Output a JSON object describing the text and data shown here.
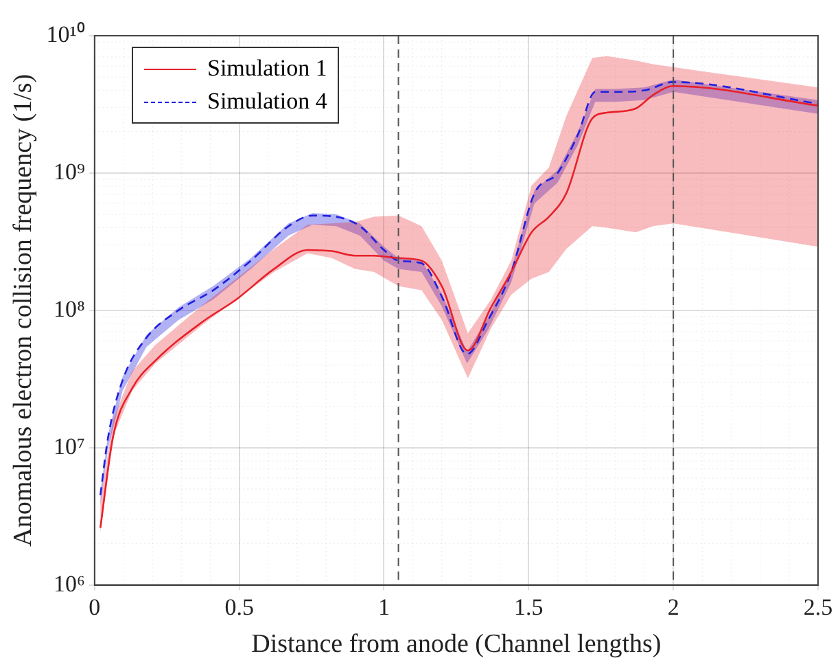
{
  "chart_data": {
    "type": "line",
    "xlabel": "Distance from anode (Channel lengths)",
    "ylabel": "Anomalous electron collision frequency (1/s)",
    "xlim": [
      0,
      2.5
    ],
    "xticks": [
      0,
      0.5,
      1,
      1.5,
      2,
      2.5
    ],
    "ylim": [
      1000000,
      10000000000
    ],
    "yticks": [
      {
        "value": 1000000,
        "label": "10⁶"
      },
      {
        "value": 10000000,
        "label": "10⁷"
      },
      {
        "value": 100000000,
        "label": "10⁸"
      },
      {
        "value": 1000000000,
        "label": "10⁹"
      },
      {
        "value": 10000000000,
        "label": "10¹⁰"
      }
    ],
    "log": true,
    "grid": true,
    "legend": "top left",
    "marker": "none",
    "series": [
      {
        "name": "Simulation 1",
        "color": "#e8202a",
        "line_style": "solid",
        "x": [
          0.02,
          0.064,
          0.13,
          0.21,
          0.375,
          0.49,
          0.62,
          0.736,
          0.82,
          0.9,
          0.966,
          1.05,
          1.13,
          1.2,
          1.29,
          1.37,
          1.44,
          1.51,
          1.57,
          1.63,
          1.72,
          1.77,
          1.87,
          1.93,
          2.0,
          2.5
        ],
        "values": [
          2600000.0,
          12000000.0,
          27000000.0,
          43000000.0,
          83000000.0,
          120000000.0,
          200000000.0,
          275000000.0,
          270000000.0,
          250000000.0,
          250000000.0,
          240000000.0,
          230000000.0,
          150000000.0,
          51000000.0,
          105000000.0,
          190000000.0,
          370000000.0,
          480000000.0,
          710000000.0,
          2500000000.0,
          2750000000.0,
          2950000000.0,
          3700000000.0,
          4300000000.0,
          3100000000.0
        ],
        "lower": [
          2400000.0,
          12000000.0,
          26000000.0,
          41000000.0,
          79000000.0,
          120000000.0,
          190000000.0,
          260000000.0,
          240000000.0,
          200000000.0,
          190000000.0,
          150000000.0,
          140000000.0,
          85000000.0,
          32000000.0,
          74000000.0,
          130000000.0,
          170000000.0,
          190000000.0,
          280000000.0,
          410000000.0,
          400000000.0,
          370000000.0,
          410000000.0,
          430000000.0,
          290000000.0
        ],
        "upper": [
          4000000.0,
          16000000.0,
          36000000.0,
          56000000.0,
          110000000.0,
          170000000.0,
          280000000.0,
          420000000.0,
          430000000.0,
          440000000.0,
          480000000.0,
          490000000.0,
          410000000.0,
          230000000.0,
          68000000.0,
          120000000.0,
          230000000.0,
          810000000.0,
          1100000000.0,
          2600000000.0,
          6900000000.0,
          7100000000.0,
          6600000000.0,
          6200000000.0,
          5900000000.0,
          4200000000.0
        ]
      },
      {
        "name": "Simulation 4",
        "color": "#2020e0",
        "line_style": "dashed",
        "x": [
          0.02,
          0.047,
          0.097,
          0.179,
          0.29,
          0.41,
          0.54,
          0.67,
          0.753,
          0.835,
          0.917,
          1.0,
          1.05,
          1.13,
          1.2,
          1.287,
          1.36,
          1.44,
          1.52,
          1.6,
          1.67,
          1.73,
          1.8,
          1.9,
          2.0,
          2.5
        ],
        "values": [
          4500000.0,
          12000000.0,
          31000000.0,
          63000000.0,
          100000000.0,
          140000000.0,
          230000000.0,
          410000000.0,
          490000000.0,
          480000000.0,
          410000000.0,
          275000000.0,
          230000000.0,
          220000000.0,
          126000000.0,
          48000000.0,
          85000000.0,
          190000000.0,
          710000000.0,
          1000000000.0,
          1900000000.0,
          3900000000.0,
          3900000000.0,
          4000000000.0,
          4600000000.0,
          3200000000.0
        ],
        "lower": [
          3800000.0,
          10000000.0,
          26000000.0,
          54000000.0,
          85000000.0,
          120000000.0,
          200000000.0,
          350000000.0,
          420000000.0,
          410000000.0,
          350000000.0,
          230000000.0,
          200000000.0,
          190000000.0,
          107000000.0,
          41000000.0,
          72000000.0,
          160000000.0,
          600000000.0,
          850000000.0,
          1600000000.0,
          3300000000.0,
          3300000000.0,
          3400000000.0,
          3900000000.0,
          2700000000.0
        ],
        "upper": [
          4700000.0,
          12600000.0,
          33000000.0,
          66000000.0,
          105000000.0,
          150000000.0,
          240000000.0,
          430000000.0,
          510000000.0,
          500000000.0,
          430000000.0,
          290000000.0,
          240000000.0,
          230000000.0,
          132000000.0,
          50000000.0,
          89000000.0,
          200000000.0,
          750000000.0,
          1050000000.0,
          2000000000.0,
          4100000000.0,
          4100000000.0,
          4200000000.0,
          4800000000.0,
          3400000000.0
        ]
      }
    ],
    "ref_lines": [
      {
        "axis": "x",
        "value": 1.05,
        "color": "#555555",
        "line_style": "dashed"
      },
      {
        "axis": "x",
        "value": 2.0,
        "color": "#555555",
        "line_style": "dashed"
      }
    ]
  }
}
